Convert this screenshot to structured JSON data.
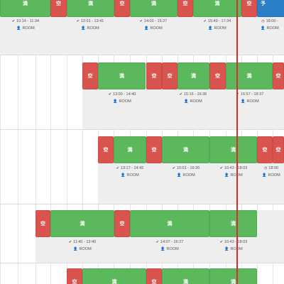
{
  "labels": {
    "busy": "満",
    "free": "空",
    "reserve": "予"
  },
  "icons": {
    "check": "check-icon",
    "clock": "clock-icon",
    "person": "person-icon"
  },
  "colors": {
    "busy": "#5cb85c",
    "free": "#d9534f",
    "reserve": "#2a7fc7",
    "now": "#d42f2f"
  },
  "bookings": {
    "r1": [
      {
        "time": "10:14 - 11:34",
        "room": "ROOM"
      },
      {
        "time": "12:01 - 13:41",
        "room": "ROOM"
      },
      {
        "time": "14:02 - 15:27",
        "room": "ROOM"
      },
      {
        "time": "15:49 - 17:34",
        "room": "ROOM"
      },
      {
        "time": "18:00 -",
        "room": "ROOM"
      }
    ],
    "r2": [
      {
        "time": "13:00 - 14:40",
        "room": "ROOM"
      },
      {
        "time": "15:16 - 16:36",
        "room": "ROOM"
      },
      {
        "time": "16:57 - 18:37",
        "room": "ROOM"
      }
    ],
    "r3": [
      {
        "time": "13:17 - 14:42",
        "room": "ROOM"
      },
      {
        "time": "15:01 - 16:26",
        "room": "ROOM"
      },
      {
        "time": "16:43 - 18:03",
        "room": "ROOM"
      },
      {
        "time": "18:00",
        "room": "ROOM"
      }
    ],
    "r4": [
      {
        "time": "11:40 - 13:40",
        "room": "ROOM"
      },
      {
        "time": "14:07 - 16:27",
        "room": "ROOM"
      },
      {
        "time": "16:43 - 18:03",
        "room": "ROOM"
      }
    ]
  }
}
